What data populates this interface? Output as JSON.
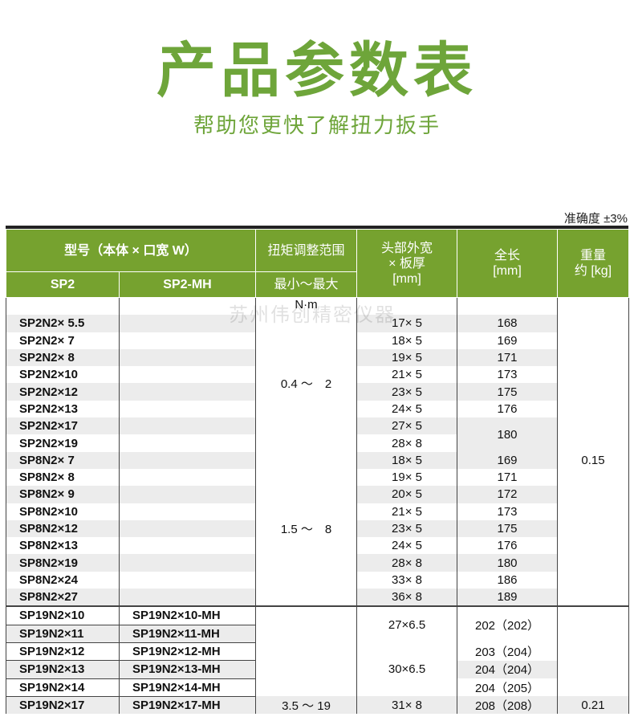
{
  "title": "产品参数表",
  "subtitle": "帮助您更快了解扭力扳手",
  "accuracy": "准确度 ±3%",
  "watermark": "苏州伟创精密仪器",
  "header": {
    "model": "型号（本体 × 口宽 W）",
    "sp2": "SP2",
    "sp2mh": "SP2-MH",
    "torque": "扭矩调整范围",
    "torque_sub": "最小～最大",
    "head": "头部外宽\n× 板厚\n[mm]",
    "length": "全长\n[mm]",
    "weight": "重量\n约 [kg]",
    "unit": "N·m"
  },
  "rows": [
    {
      "m": "SP2N2× 5.5",
      "mh": "",
      "h": "17× 5",
      "l": "168"
    },
    {
      "m": "SP2N2× 7",
      "mh": "",
      "h": "18× 5",
      "l": "169"
    },
    {
      "m": "SP2N2× 8",
      "mh": "",
      "h": "19× 5",
      "l": "171"
    },
    {
      "m": "SP2N2×10",
      "mh": "",
      "h": "21× 5",
      "l": "173"
    },
    {
      "m": "SP2N2×12",
      "mh": "",
      "h": "23× 5",
      "l": "175"
    },
    {
      "m": "SP2N2×13",
      "mh": "",
      "h": "24× 5",
      "l": "176"
    },
    {
      "m": "SP2N2×17",
      "mh": "",
      "h": "27× 5",
      "l": "180"
    },
    {
      "m": "SP2N2×19",
      "mh": "",
      "h": "28× 8",
      "l": ""
    },
    {
      "m": "SP8N2× 7",
      "mh": "",
      "h": "18× 5",
      "l": "169"
    },
    {
      "m": "SP8N2× 8",
      "mh": "",
      "h": "19× 5",
      "l": "171"
    },
    {
      "m": "SP8N2× 9",
      "mh": "",
      "h": "20× 5",
      "l": "172"
    },
    {
      "m": "SP8N2×10",
      "mh": "",
      "h": "21× 5",
      "l": "173"
    },
    {
      "m": "SP8N2×12",
      "mh": "",
      "h": "23× 5",
      "l": "175"
    },
    {
      "m": "SP8N2×13",
      "mh": "",
      "h": "24× 5",
      "l": "176"
    },
    {
      "m": "SP8N2×19",
      "mh": "",
      "h": "28× 8",
      "l": "180"
    },
    {
      "m": "SP8N2×24",
      "mh": "",
      "h": "33× 8",
      "l": "186"
    },
    {
      "m": "SP8N2×27",
      "mh": "",
      "h": "36× 8",
      "l": "189"
    },
    {
      "m": "SP19N2×10",
      "mh": "SP19N2×10-MH",
      "h": "27×6.5",
      "l": "202（202）"
    },
    {
      "m": "SP19N2×11",
      "mh": "SP19N2×11-MH",
      "h": "",
      "l": ""
    },
    {
      "m": "SP19N2×12",
      "mh": "SP19N2×12-MH",
      "h": "30×6.5",
      "l": "203（204）"
    },
    {
      "m": "SP19N2×13",
      "mh": "SP19N2×13-MH",
      "h": "",
      "l": "204（204）"
    },
    {
      "m": "SP19N2×14",
      "mh": "SP19N2×14-MH",
      "h": "",
      "l": "204（205）"
    },
    {
      "m": "SP19N2×17",
      "mh": "SP19N2×17-MH",
      "h": "31× 8",
      "l": "208（208）"
    }
  ],
  "torque": [
    "0.4 ～　2",
    "1.5 ～　8",
    "3.5 ～ 19"
  ],
  "weight": [
    "0.15",
    "0.21"
  ]
}
